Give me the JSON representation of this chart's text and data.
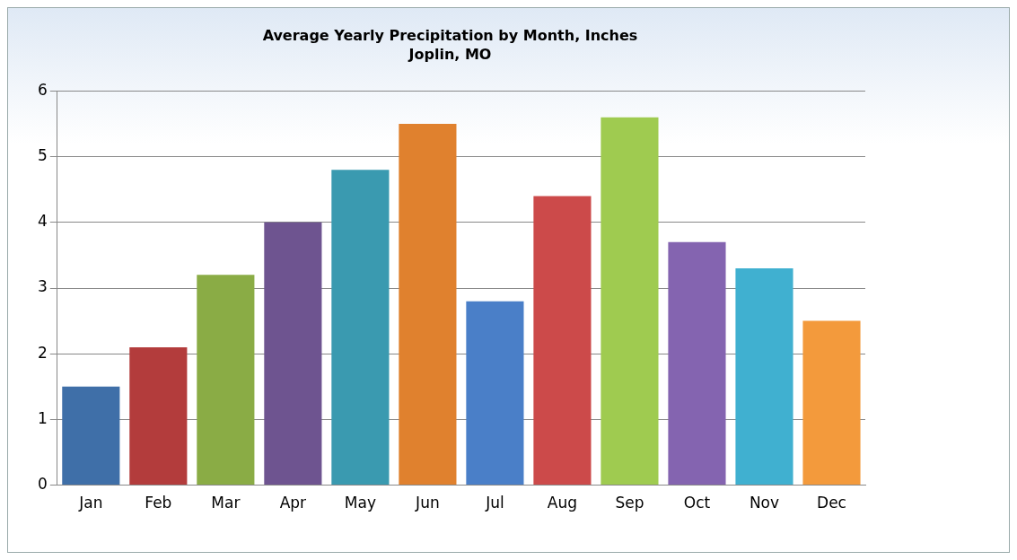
{
  "chart_data": {
    "type": "bar",
    "title": "Average Yearly Precipitation by Month, Inches",
    "subtitle": "Joplin, MO",
    "categories": [
      "Jan",
      "Feb",
      "Mar",
      "Apr",
      "May",
      "Jun",
      "Jul",
      "Aug",
      "Sep",
      "Oct",
      "Nov",
      "Dec"
    ],
    "values": [
      1.5,
      2.1,
      3.2,
      4.0,
      4.8,
      5.5,
      2.8,
      4.4,
      5.6,
      3.7,
      3.3,
      2.5
    ],
    "colors": [
      "#3f6fa8",
      "#b33c3c",
      "#8aac45",
      "#6e5490",
      "#3a9ab0",
      "#e0812e",
      "#4a7fc8",
      "#cc4a4a",
      "#9fcb50",
      "#8464b0",
      "#40b0d0",
      "#f39a3c"
    ],
    "ylim": [
      0,
      6
    ],
    "yticks": [
      0,
      1,
      2,
      3,
      4,
      5,
      6
    ],
    "grid": "y"
  }
}
